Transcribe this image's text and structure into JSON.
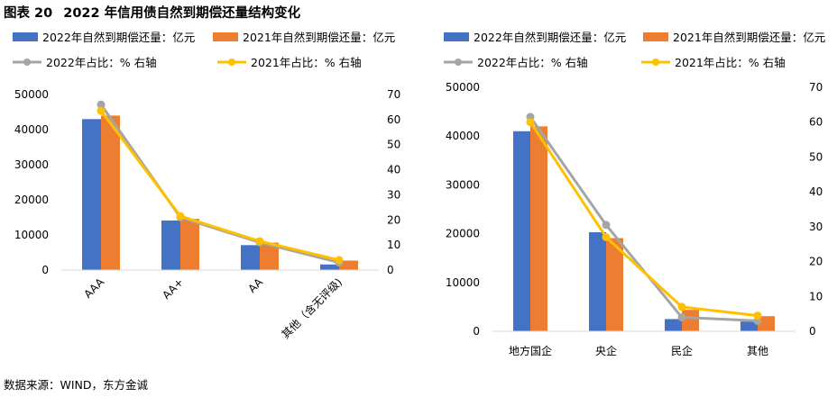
{
  "figure": {
    "label": "图表 20",
    "title": "2022 年信用债自然到期偿还量结构变化",
    "source": "数据来源：WIND，东方金诚"
  },
  "colors": {
    "bar_2022": "#4472C4",
    "bar_2021": "#ED7D31",
    "line_2022": "#A5A5A5",
    "line_2021": "#FFC000"
  },
  "chart_data": [
    {
      "type": "bar",
      "combo": "bar+line",
      "categories": [
        "AAA",
        "AA+",
        "AA",
        "其他（含无评级)"
      ],
      "series": [
        {
          "name": "2022年自然到期偿还量：亿元",
          "kind": "bar",
          "axis": "left",
          "values": [
            43000,
            14100,
            7100,
            1600
          ]
        },
        {
          "name": "2021年自然到期偿还量：亿元",
          "kind": "bar",
          "axis": "left",
          "values": [
            44000,
            14600,
            7800,
            2700
          ]
        },
        {
          "name": "2022年占比：% 右轴",
          "kind": "line",
          "axis": "right",
          "values": [
            66,
            21,
            11,
            3
          ]
        },
        {
          "name": "2021年占比：% 右轴",
          "kind": "line",
          "axis": "right",
          "values": [
            63.5,
            21.5,
            11.5,
            4
          ]
        }
      ],
      "ylim": [
        0,
        50000
      ],
      "yticks": [
        0,
        10000,
        20000,
        30000,
        40000,
        50000
      ],
      "y2lim": [
        0,
        70
      ],
      "y2ticks": [
        0,
        10,
        20,
        30,
        40,
        50,
        60,
        70
      ],
      "xlabel_rotation": "-45deg",
      "legend": "top",
      "grid": false
    },
    {
      "type": "bar",
      "combo": "bar+line",
      "categories": [
        "地方国企",
        "央企",
        "民企",
        "其他"
      ],
      "series": [
        {
          "name": "2022年自然到期偿还量：亿元",
          "kind": "bar",
          "axis": "left",
          "values": [
            41000,
            20300,
            2500,
            2000
          ]
        },
        {
          "name": "2021年自然到期偿还量：亿元",
          "kind": "bar",
          "axis": "left",
          "values": [
            42000,
            19100,
            4400,
            3100
          ]
        },
        {
          "name": "2022年占比：% 右轴",
          "kind": "line",
          "axis": "right",
          "values": [
            61.5,
            30.5,
            4,
            3
          ]
        },
        {
          "name": "2021年占比：% 右轴",
          "kind": "line",
          "axis": "right",
          "values": [
            60,
            27,
            7,
            4.5
          ]
        }
      ],
      "ylim": [
        0,
        50000
      ],
      "yticks": [
        0,
        10000,
        20000,
        30000,
        40000,
        50000
      ],
      "y2lim": [
        0,
        70
      ],
      "y2ticks": [
        0,
        10,
        20,
        30,
        40,
        50,
        60,
        70
      ],
      "legend": "top",
      "grid": false
    }
  ]
}
